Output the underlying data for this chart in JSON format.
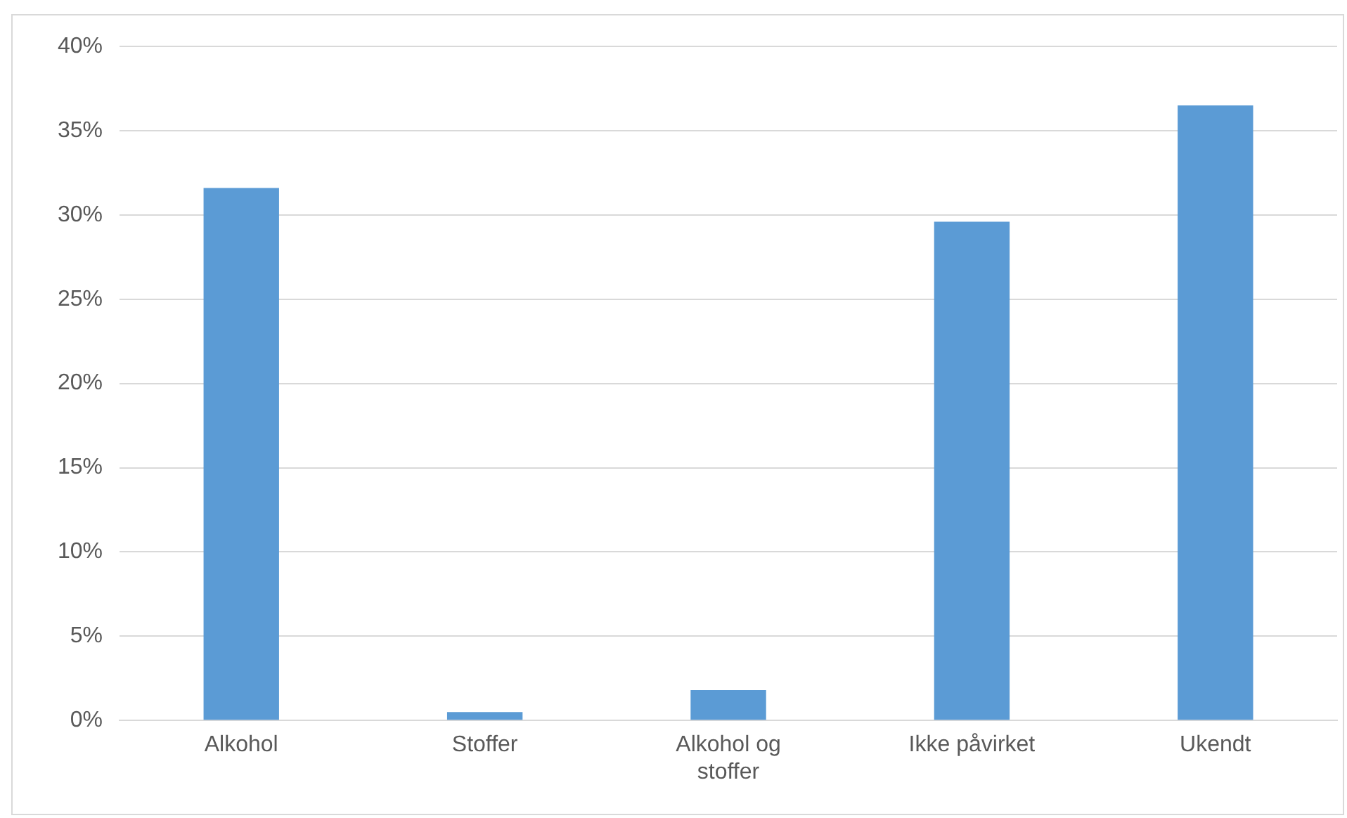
{
  "chart_data": {
    "type": "bar",
    "categories": [
      "Alkohol",
      "Stoffer",
      "Alkohol og stoffer",
      "Ikke påvirket",
      "Ukendt"
    ],
    "values": [
      31.6,
      0.5,
      1.8,
      29.6,
      36.5
    ],
    "color": "#5b9bd5",
    "ylim": [
      0,
      40
    ],
    "yticks": [
      {
        "value": 0,
        "label": "0%"
      },
      {
        "value": 5,
        "label": "5%"
      },
      {
        "value": 10,
        "label": "10%"
      },
      {
        "value": 15,
        "label": "15%"
      },
      {
        "value": 20,
        "label": "20%"
      },
      {
        "value": 25,
        "label": "25%"
      },
      {
        "value": 30,
        "label": "30%"
      },
      {
        "value": 35,
        "label": "35%"
      },
      {
        "value": 40,
        "label": "40%"
      }
    ],
    "grid": "y"
  }
}
